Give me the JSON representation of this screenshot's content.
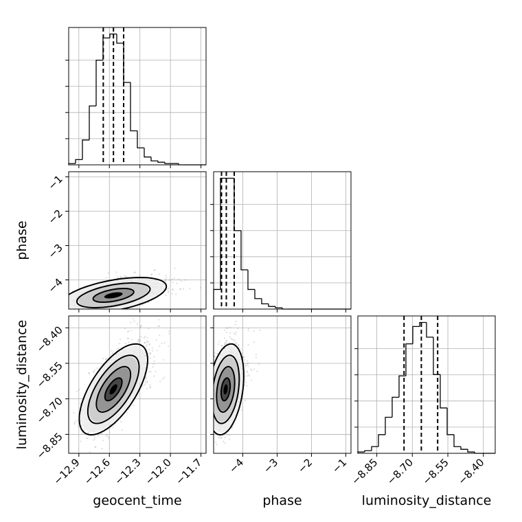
{
  "chart_data": {
    "type": "corner",
    "parameters": [
      "geocent_time",
      "phase",
      "luminosity_distance"
    ],
    "axes": {
      "geocent_time": {
        "label": "geocent_time",
        "range": [
          -13.0,
          -11.65
        ],
        "ticks": [
          -12.9,
          -12.6,
          -12.3,
          -12.0,
          -11.7
        ],
        "tick_labels": [
          "−12.9",
          "−12.6",
          "−12.3",
          "−12.0",
          "−11.7"
        ]
      },
      "phase": {
        "label": "phase",
        "range": [
          -4.85,
          -0.85
        ],
        "ticks": [
          -4,
          -3,
          -2,
          -1
        ],
        "tick_labels": [
          "−4",
          "−3",
          "−2",
          "−1"
        ]
      },
      "luminosity_distance": {
        "label": "luminosity_distance",
        "range": [
          -8.93,
          -8.35
        ],
        "ticks": [
          -8.85,
          -8.7,
          -8.55,
          -8.4
        ],
        "tick_labels": [
          "−8.85",
          "−8.70",
          "−8.55",
          "−8.40"
        ]
      }
    },
    "histograms": [
      {
        "parameter": "geocent_time",
        "bin_start": -13.0,
        "bin_width": 0.0675,
        "counts": [
          1,
          4,
          19,
          45,
          80,
          97,
          100,
          93,
          63,
          26,
          13,
          6,
          3,
          2,
          1,
          1,
          0,
          0,
          0,
          0
        ],
        "quantiles": [
          -12.66,
          -12.56,
          -12.46
        ]
      },
      {
        "parameter": "phase",
        "bin_start": -4.85,
        "bin_width": 0.2,
        "counts": [
          15,
          100,
          100,
          60,
          30,
          15,
          8,
          4,
          2,
          1,
          0,
          0,
          0,
          0,
          0,
          0,
          0,
          0,
          0,
          0
        ],
        "quantiles": [
          -4.62,
          -4.48,
          -4.25
        ]
      },
      {
        "parameter": "luminosity_distance",
        "bin_start": -8.93,
        "bin_width": 0.029,
        "counts": [
          1,
          2,
          5,
          14,
          27,
          42,
          58,
          82,
          95,
          98,
          87,
          59,
          34,
          14,
          5,
          3,
          1,
          0,
          0,
          0
        ],
        "quantiles": [
          -8.735,
          -8.662,
          -8.593
        ]
      }
    ],
    "pairs": [
      {
        "x": "geocent_time",
        "y": "phase",
        "center": [
          -12.56,
          -4.45
        ],
        "spread": [
          0.2,
          0.2
        ],
        "correlation": 0.5,
        "contour_levels": [
          1.0,
          1.8,
          2.6
        ]
      },
      {
        "x": "geocent_time",
        "y": "luminosity_distance",
        "center": [
          -12.56,
          -8.66
        ],
        "spread": [
          0.14,
          0.08
        ],
        "correlation": 0.65,
        "contour_levels": [
          0.6,
          1.2,
          1.8,
          2.4
        ]
      },
      {
        "x": "phase",
        "y": "luminosity_distance",
        "center": [
          -4.5,
          -8.66
        ],
        "spread": [
          0.22,
          0.08
        ],
        "correlation": 0.3,
        "contour_levels": [
          0.6,
          1.2,
          1.8,
          2.4
        ]
      }
    ],
    "grid": true,
    "colors": {
      "line": "#000000",
      "grid": "#b0b0b0",
      "sample": "#000000"
    }
  }
}
